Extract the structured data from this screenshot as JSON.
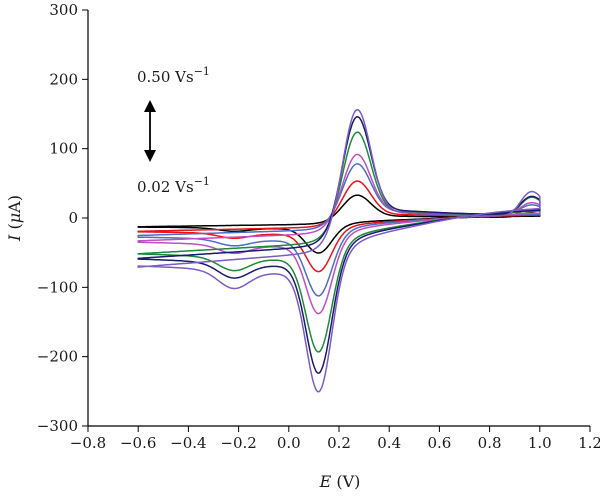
{
  "chart_data": {
    "type": "line",
    "title": "",
    "xlabel_var": "E",
    "xlabel_unit": "(V)",
    "ylabel_var": "I",
    "ylabel_unit_pre": "(",
    "ylabel_unit_mu": "μ",
    "ylabel_unit_post": "A)",
    "xlim": [
      -0.8,
      1.2
    ],
    "ylim": [
      -300,
      300
    ],
    "xticks": [
      -0.8,
      -0.6,
      -0.4,
      -0.2,
      0.0,
      0.2,
      0.4,
      0.6,
      0.8,
      1.0,
      1.2
    ],
    "xtick_labels": [
      "−0.8",
      "−0.6",
      "−0.4",
      "−0.2",
      "0.0",
      "0.2",
      "0.4",
      "0.6",
      "0.8",
      "1.0",
      "1.2"
    ],
    "yticks": [
      -300,
      -200,
      -100,
      0,
      100,
      200,
      300
    ],
    "ytick_labels": [
      "−300",
      "−200",
      "−100",
      "0",
      "100",
      "200",
      "300"
    ],
    "grid": false,
    "legend": "none",
    "annotations": {
      "top_text": "0.50 Vs",
      "top_sup": "−1",
      "bottom_text": "0.02 Vs",
      "bottom_sup": "−1"
    },
    "series": [
      {
        "color": "#000000",
        "ipa": 44,
        "ipc": -47,
        "base_a": 5,
        "base_c": -21,
        "switch_a": 14,
        "switch_c": 12
      },
      {
        "color": "#e8141b",
        "ipa": 70,
        "ipc": -72,
        "base_a": 9,
        "base_c": -32,
        "switch_a": 22,
        "switch_c": 18
      },
      {
        "color": "#4a6fc4",
        "ipa": 100,
        "ipc": -106,
        "base_a": 14,
        "base_c": -42,
        "switch_a": 30,
        "switch_c": 24
      },
      {
        "color": "#c050c0",
        "ipa": 120,
        "ipc": -129,
        "base_a": 17,
        "base_c": -55,
        "switch_a": 38,
        "switch_c": 30
      },
      {
        "color": "#1e8a3a",
        "ipa": 168,
        "ipc": -178,
        "base_a": 22,
        "base_c": -86,
        "switch_a": 60,
        "switch_c": 45
      },
      {
        "color": "#1a1a6e",
        "ipa": 196,
        "ipc": -207,
        "base_a": 26,
        "base_c": -97,
        "switch_a": 58,
        "switch_c": 50
      },
      {
        "color": "#7b5cc4",
        "ipa": 216,
        "ipc": -229,
        "base_a": 30,
        "base_c": -118,
        "switch_a": 80,
        "switch_c": 60
      }
    ]
  }
}
